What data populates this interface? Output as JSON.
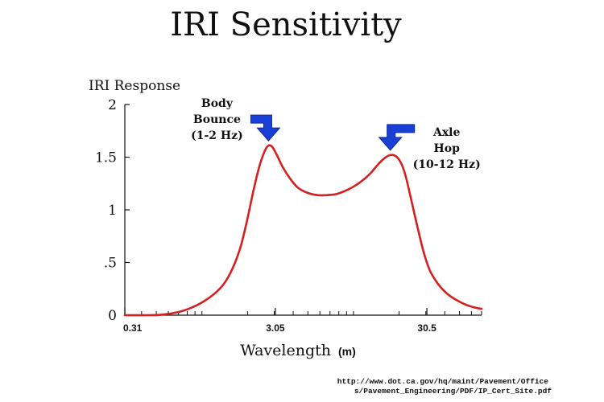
{
  "chart_data": {
    "type": "line",
    "title": "IRI Sensitivity",
    "ylabel": "IRI Response",
    "xlabel": "Wavelength",
    "xunit": "(m)",
    "xscale": "log",
    "xlim": [
      0.31,
      70
    ],
    "ylim": [
      0,
      2
    ],
    "yticks": [
      {
        "value": 0,
        "label": "0"
      },
      {
        "value": 0.5,
        "label": ".5"
      },
      {
        "value": 1,
        "label": "1"
      },
      {
        "value": 1.5,
        "label": "1.5"
      },
      {
        "value": 2,
        "label": "2"
      }
    ],
    "xticks": [
      {
        "value": 0.31,
        "label": "0.31"
      },
      {
        "value": 3.05,
        "label": "3.05"
      },
      {
        "value": 30.5,
        "label": "30.5"
      }
    ],
    "grid": false,
    "color": "#d42020",
    "series": [
      {
        "x": [
          0.31,
          0.45,
          0.55,
          0.7,
          0.85,
          1.0,
          1.2,
          1.4,
          1.6,
          1.8,
          2.0,
          2.2,
          2.4,
          2.6,
          2.75,
          2.9,
          3.1,
          3.4,
          3.8,
          4.3,
          5.0,
          5.8,
          6.7,
          7.7,
          8.8,
          10.0,
          11.5,
          13.0,
          14.5,
          16.0,
          17.5,
          19.0,
          20.5,
          22.0,
          24.0,
          26.5,
          29.0,
          32.0,
          36.0,
          41.0,
          47.0,
          55.0,
          64.0,
          70.0
        ],
        "y": [
          0,
          0,
          0.005,
          0.03,
          0.07,
          0.12,
          0.2,
          0.3,
          0.45,
          0.65,
          0.92,
          1.2,
          1.42,
          1.56,
          1.61,
          1.6,
          1.53,
          1.41,
          1.3,
          1.21,
          1.16,
          1.14,
          1.14,
          1.15,
          1.18,
          1.22,
          1.28,
          1.35,
          1.43,
          1.49,
          1.52,
          1.51,
          1.45,
          1.33,
          1.1,
          0.83,
          0.6,
          0.42,
          0.3,
          0.21,
          0.15,
          0.1,
          0.07,
          0.06
        ]
      }
    ],
    "annotations": [
      {
        "lines": [
          "Body",
          "Bounce",
          "(1-2 Hz)"
        ],
        "x": 2.75,
        "y": 1.61
      },
      {
        "lines": [
          "Axle",
          "Hop",
          "(10-12 Hz)"
        ],
        "x": 17.5,
        "y": 1.52
      }
    ],
    "source": [
      "http://www.dot.ca.gov/hq/maint/Pavement/Office",
      "s/Pavement_Engineering/PDF/IP_Cert_Site.pdf"
    ]
  }
}
